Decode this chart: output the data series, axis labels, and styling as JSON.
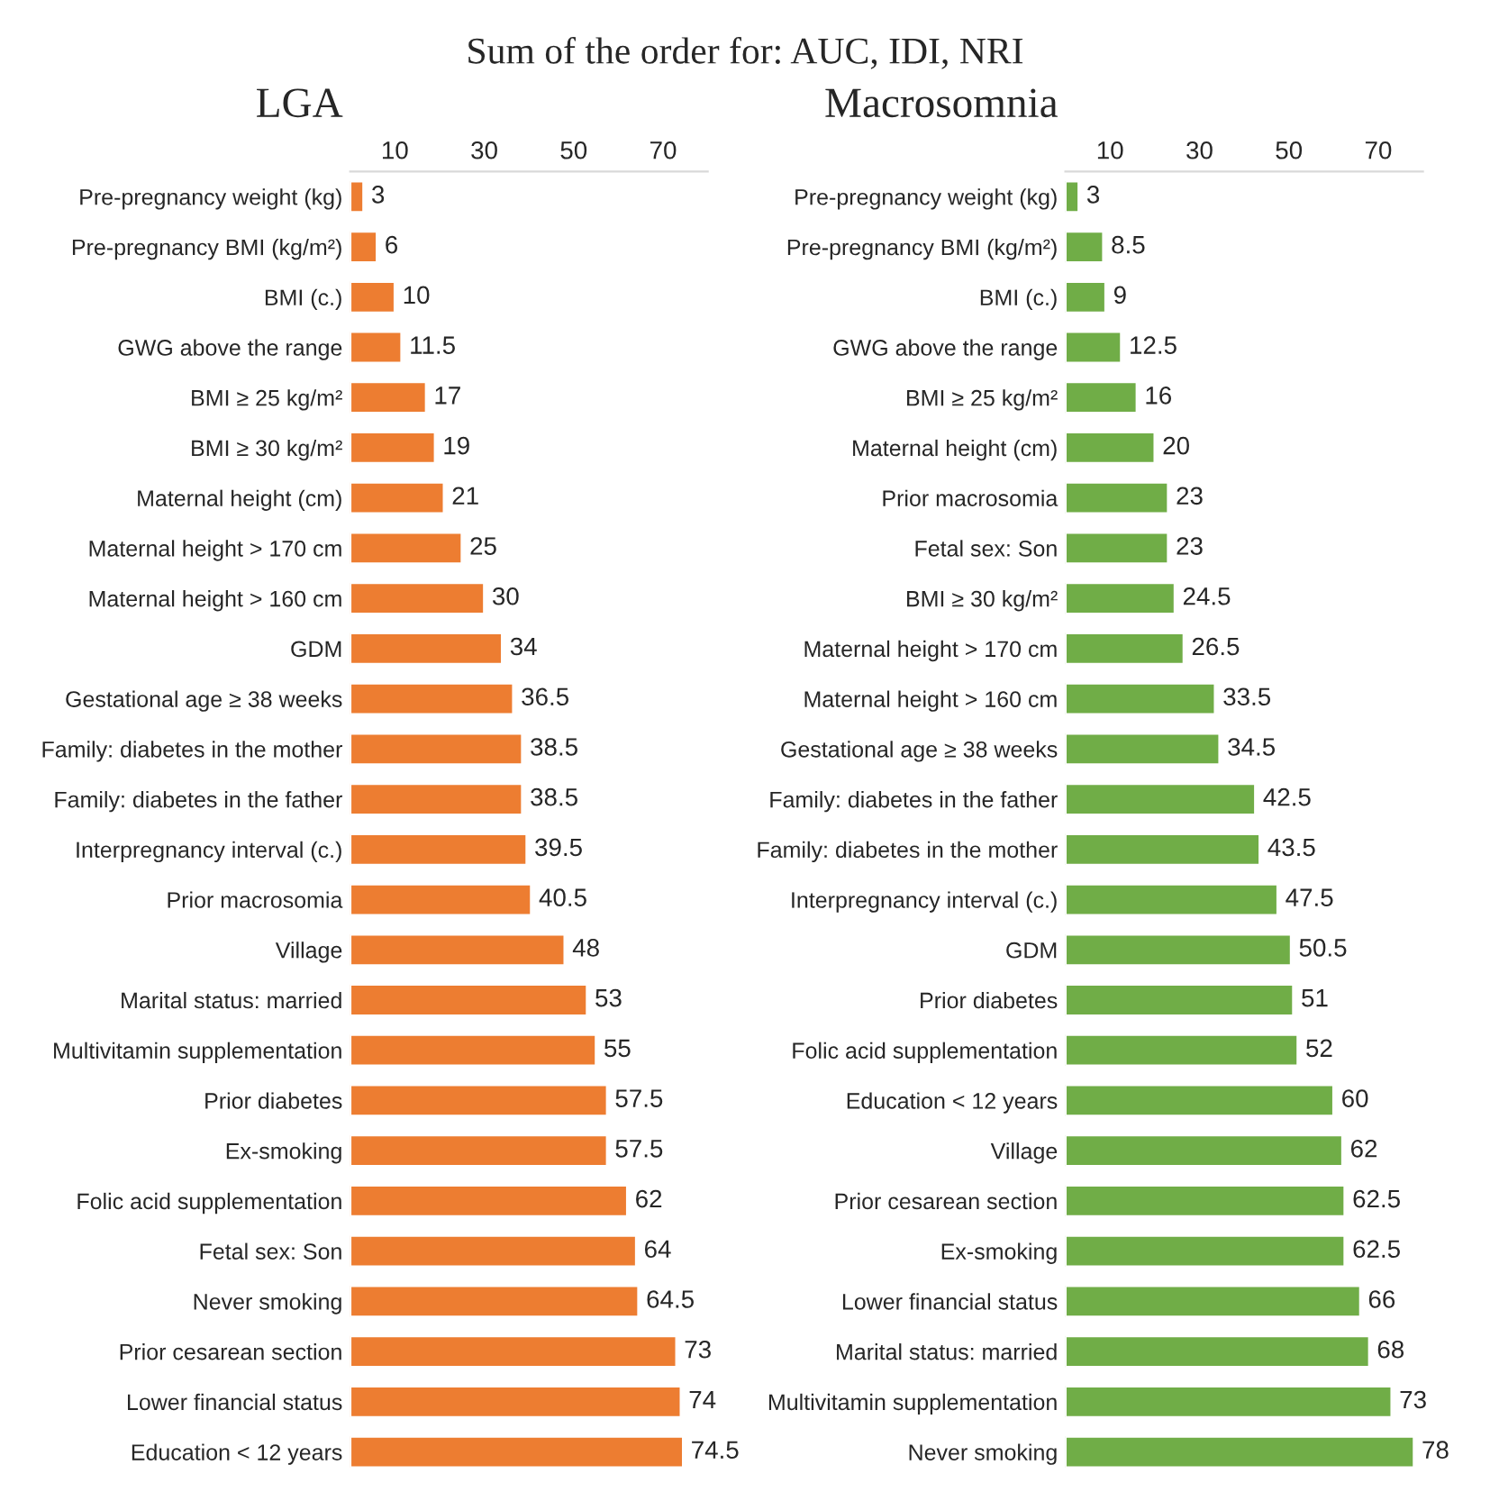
{
  "chart_data": [
    {
      "type": "bar",
      "orientation": "horizontal",
      "title": "LGA",
      "annotations": [
        "Sum of the order for: AUC, IDI, NRI"
      ],
      "categories": [
        "Pre-pregnancy weight (kg)",
        "Pre-pregnancy BMI (kg/m²)",
        "BMI (c.)",
        "GWG above the range",
        "BMI ≥ 25 kg/m²",
        "BMI ≥ 30 kg/m²",
        "Maternal height (cm)",
        "Maternal height > 170 cm",
        "Maternal height > 160 cm",
        "GDM",
        "Gestational age ≥ 38 weeks",
        "Family: diabetes in the mother",
        "Family: diabetes in the father",
        "Interpregnancy interval (c.)",
        "Prior macrosomia",
        "Village",
        "Marital status: married",
        "Multivitamin supplementation",
        "Prior diabetes",
        "Ex-smoking",
        "Folic acid supplementation",
        "Fetal sex: Son",
        "Never smoking",
        "Prior cesarean section",
        "Lower financial status",
        "Education < 12 years"
      ],
      "values": [
        3,
        6,
        10,
        11.5,
        17,
        19,
        21,
        25,
        30,
        34,
        36.5,
        38.5,
        38.5,
        39.5,
        40.5,
        48,
        53,
        55,
        57.5,
        57.5,
        62,
        64,
        64.5,
        73,
        74,
        74.5
      ],
      "color": "#ed7d31",
      "xlim": [
        0,
        80
      ],
      "xticks": [
        10,
        30,
        50,
        70
      ],
      "data_labels": true
    },
    {
      "type": "bar",
      "orientation": "horizontal",
      "title": "Macrosomnia",
      "categories": [
        "Pre-pregnancy weight (kg)",
        "Pre-pregnancy BMI (kg/m²)",
        "BMI (c.)",
        "GWG above the range",
        "BMI ≥ 25 kg/m²",
        "Maternal height (cm)",
        "Prior macrosomia",
        "Fetal sex: Son",
        "BMI ≥ 30 kg/m²",
        "Maternal height > 170 cm",
        "Maternal height > 160 cm",
        "Gestational age ≥ 38 weeks",
        "Family: diabetes in the father",
        "Family: diabetes in the mother",
        "Interpregnancy interval (c.)",
        "GDM",
        "Prior diabetes",
        "Folic acid supplementation",
        "Education < 12 years",
        "Village",
        "Prior cesarean section",
        "Ex-smoking",
        "Lower financial status",
        "Marital status: married",
        "Multivitamin supplementation",
        "Never smoking"
      ],
      "values": [
        3,
        8.5,
        9,
        12.5,
        16,
        20,
        23,
        23,
        24.5,
        26.5,
        33.5,
        34.5,
        42.5,
        43.5,
        47.5,
        50.5,
        51,
        52,
        60,
        62,
        62.5,
        62.5,
        66,
        68,
        73,
        78
      ],
      "color": "#70ad47",
      "xlim": [
        0,
        80
      ],
      "xticks": [
        10,
        30,
        50,
        70
      ],
      "data_labels": true
    }
  ]
}
